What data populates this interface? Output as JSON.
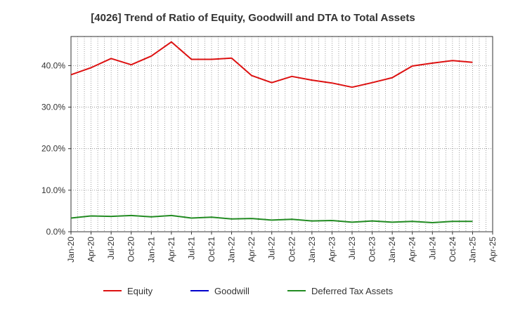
{
  "chart_data": {
    "type": "line",
    "title": "[4026]  Trend of Ratio of Equity, Goodwill and DTA to Total Assets",
    "xlabel": "",
    "ylabel": "",
    "x_tick_labels": [
      "Jan-20",
      "Apr-20",
      "Jul-20",
      "Oct-20",
      "Jan-21",
      "Apr-21",
      "Jul-21",
      "Oct-21",
      "Jan-22",
      "Apr-22",
      "Jul-22",
      "Oct-22",
      "Jan-23",
      "Apr-23",
      "Jul-23",
      "Oct-23",
      "Jan-24",
      "Apr-24",
      "Jul-24",
      "Oct-24",
      "Jan-25",
      "Apr-25"
    ],
    "y_tick_labels": [
      "0.0%",
      "10.0%",
      "20.0%",
      "30.0%",
      "40.0%"
    ],
    "y_ticks": [
      0,
      10,
      20,
      30,
      40
    ],
    "ylim": [
      0,
      47
    ],
    "grid": true,
    "legend_position": "bottom",
    "series": [
      {
        "name": "Equity",
        "color": "#dd1111",
        "values": [
          37.8,
          39.5,
          41.7,
          40.2,
          42.3,
          45.7,
          41.5,
          41.5,
          41.8,
          37.6,
          35.9,
          37.4,
          36.5,
          35.8,
          34.8,
          35.9,
          37.1,
          39.9,
          40.6,
          41.2,
          40.8,
          null
        ]
      },
      {
        "name": "Goodwill",
        "color": "#0000cc",
        "values": [
          null,
          null,
          null,
          null,
          null,
          null,
          null,
          null,
          null,
          null,
          null,
          null,
          null,
          null,
          null,
          null,
          null,
          null,
          null,
          null,
          null,
          null
        ]
      },
      {
        "name": "Deferred Tax Assets",
        "color": "#228b22",
        "values": [
          3.3,
          3.8,
          3.7,
          3.9,
          3.6,
          3.9,
          3.3,
          3.5,
          3.1,
          3.2,
          2.8,
          3.0,
          2.6,
          2.7,
          2.3,
          2.6,
          2.3,
          2.5,
          2.2,
          2.5,
          2.5,
          null
        ]
      }
    ]
  }
}
